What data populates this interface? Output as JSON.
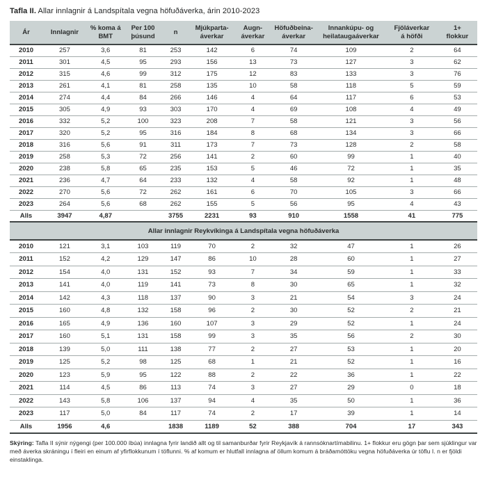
{
  "title": {
    "bold": "Tafla II.",
    "rest": " Allar innlagnir á Landspítala vegna höfuðáverka, árin 2010-2023"
  },
  "table": {
    "columns": [
      "Ár",
      "Innlagnir",
      "% koma á\nBMT",
      "Per 100\nþúsund",
      "n",
      "Mjúkparta-\náverkar",
      "Augn-\náverkar",
      "Höfuðbeina-\náverkar",
      "Innankúpu- og\nheilataugaáverkar",
      "Fjöláverkar\ná höfði",
      "1+\nflokkur"
    ],
    "section1": {
      "rows": [
        [
          "2010",
          "257",
          "3,6",
          "81",
          "253",
          "142",
          "6",
          "74",
          "109",
          "2",
          "64"
        ],
        [
          "2011",
          "301",
          "4,5",
          "95",
          "293",
          "156",
          "13",
          "73",
          "127",
          "3",
          "62"
        ],
        [
          "2012",
          "315",
          "4,6",
          "99",
          "312",
          "175",
          "12",
          "83",
          "133",
          "3",
          "76"
        ],
        [
          "2013",
          "261",
          "4,1",
          "81",
          "258",
          "135",
          "10",
          "58",
          "118",
          "5",
          "59"
        ],
        [
          "2014",
          "274",
          "4,4",
          "84",
          "266",
          "146",
          "4",
          "64",
          "117",
          "6",
          "53"
        ],
        [
          "2015",
          "305",
          "4,9",
          "93",
          "303",
          "170",
          "4",
          "69",
          "108",
          "4",
          "49"
        ],
        [
          "2016",
          "332",
          "5,2",
          "100",
          "323",
          "208",
          "7",
          "58",
          "121",
          "3",
          "56"
        ],
        [
          "2017",
          "320",
          "5,2",
          "95",
          "316",
          "184",
          "8",
          "68",
          "134",
          "3",
          "66"
        ],
        [
          "2018",
          "316",
          "5,6",
          "91",
          "311",
          "173",
          "7",
          "73",
          "128",
          "2",
          "58"
        ],
        [
          "2019",
          "258",
          "5,3",
          "72",
          "256",
          "141",
          "2",
          "60",
          "99",
          "1",
          "40"
        ],
        [
          "2020",
          "238",
          "5,8",
          "65",
          "235",
          "153",
          "5",
          "46",
          "72",
          "1",
          "35"
        ],
        [
          "2021",
          "236",
          "4,7",
          "64",
          "233",
          "132",
          "4",
          "58",
          "92",
          "1",
          "48"
        ],
        [
          "2022",
          "270",
          "5,6",
          "72",
          "262",
          "161",
          "6",
          "70",
          "105",
          "3",
          "66"
        ],
        [
          "2023",
          "264",
          "5,6",
          "68",
          "262",
          "155",
          "5",
          "56",
          "95",
          "4",
          "43"
        ]
      ],
      "totals": [
        "Alls",
        "3947",
        "4,87",
        "",
        "3755",
        "2231",
        "93",
        "910",
        "1558",
        "41",
        "775"
      ]
    },
    "section2_title": "Allar innlagnir Reykvíkinga á Landspítala vegna höfuðáverka",
    "section2": {
      "rows": [
        [
          "2010",
          "121",
          "3,1",
          "103",
          "119",
          "70",
          "2",
          "32",
          "47",
          "1",
          "26"
        ],
        [
          "2011",
          "152",
          "4,2",
          "129",
          "147",
          "86",
          "10",
          "28",
          "60",
          "1",
          "27"
        ],
        [
          "2012",
          "154",
          "4,0",
          "131",
          "152",
          "93",
          "7",
          "34",
          "59",
          "1",
          "33"
        ],
        [
          "2013",
          "141",
          "4,0",
          "119",
          "141",
          "73",
          "8",
          "30",
          "65",
          "1",
          "32"
        ],
        [
          "2014",
          "142",
          "4,3",
          "118",
          "137",
          "90",
          "3",
          "21",
          "54",
          "3",
          "24"
        ],
        [
          "2015",
          "160",
          "4,8",
          "132",
          "158",
          "96",
          "2",
          "30",
          "52",
          "2",
          "21"
        ],
        [
          "2016",
          "165",
          "4,9",
          "136",
          "160",
          "107",
          "3",
          "29",
          "52",
          "1",
          "24"
        ],
        [
          "2017",
          "160",
          "5,1",
          "131",
          "158",
          "99",
          "3",
          "35",
          "56",
          "2",
          "30"
        ],
        [
          "2018",
          "139",
          "5,0",
          "111",
          "138",
          "77",
          "2",
          "27",
          "53",
          "1",
          "20"
        ],
        [
          "2019",
          "125",
          "5,2",
          "98",
          "125",
          "68",
          "1",
          "21",
          "52",
          "1",
          "16"
        ],
        [
          "2020",
          "123",
          "5,9",
          "95",
          "122",
          "88",
          "2",
          "22",
          "36",
          "1",
          "22"
        ],
        [
          "2021",
          "114",
          "4,5",
          "86",
          "113",
          "74",
          "3",
          "27",
          "29",
          "0",
          "18"
        ],
        [
          "2022",
          "143",
          "5,8",
          "106",
          "137",
          "94",
          "4",
          "35",
          "50",
          "1",
          "36"
        ],
        [
          "2023",
          "117",
          "5,0",
          "84",
          "117",
          "74",
          "2",
          "17",
          "39",
          "1",
          "14"
        ]
      ],
      "totals": [
        "Alls",
        "1956",
        "4,6",
        "",
        "1838",
        "1189",
        "52",
        "388",
        "704",
        "17",
        "343"
      ]
    }
  },
  "footnote": {
    "label": "Skýring:",
    "text": " Tafla II sýnir nýgengi (per 100.000 íbúa) innlagna fyrir landið allt og til samanburðar fyrir Reykjavík á rannsóknartímabilinu. 1+ flokkur eru gögn þar sem sjúklingur var með áverka skráningu í fleiri en einum af yfirflokkunum í töflunni. % af komum er hlutfall innlagna af öllum komum á bráðamóttöku vegna höfuðáverka úr töflu I. n er fjöldi einstaklinga."
  },
  "colors": {
    "band_background": "#cbd3d3",
    "row_border": "#a3abab",
    "heavy_border": "#3f4444",
    "text": "#2b2d2d"
  }
}
